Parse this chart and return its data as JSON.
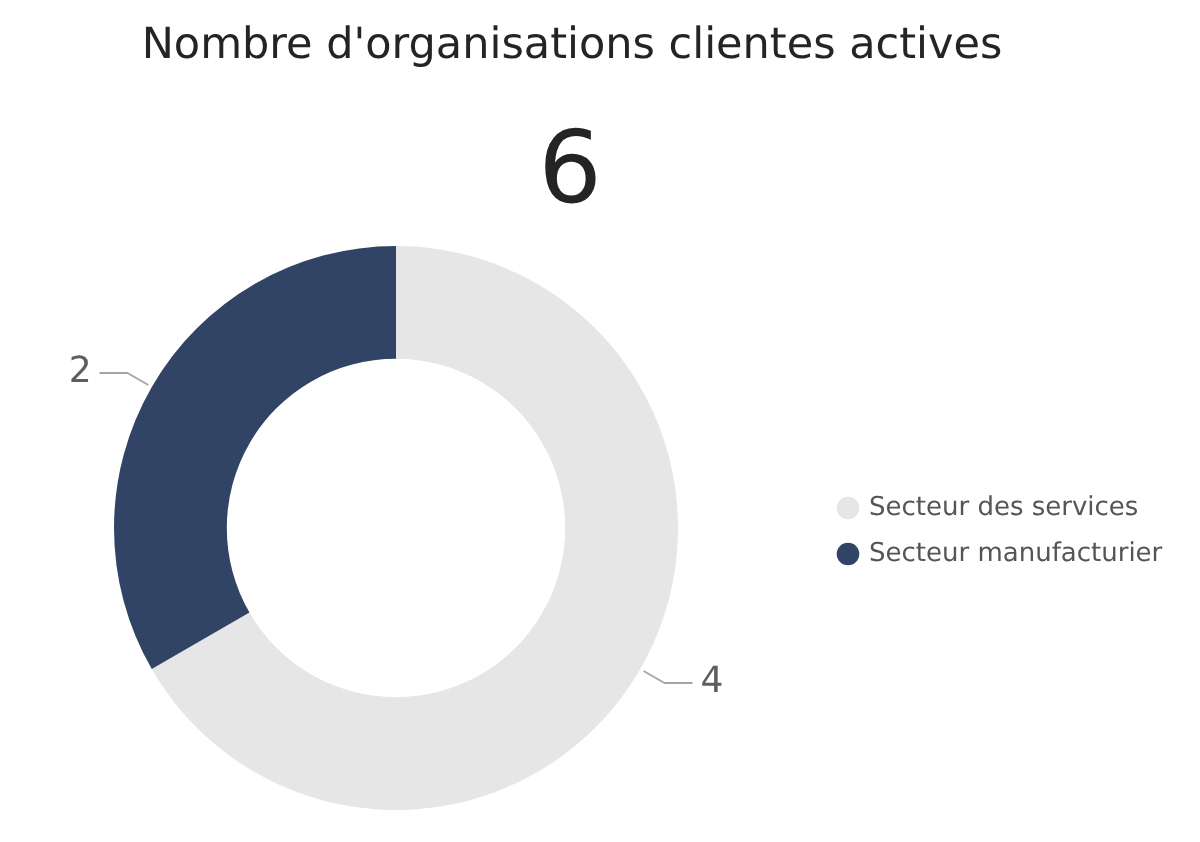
{
  "chart_data": {
    "type": "donut",
    "title": "Nombre d'organisations clientes actives",
    "subtitle": "6",
    "categories": [
      "Secteur des services",
      "Secteur manufacturier"
    ],
    "values": [
      4,
      2
    ],
    "colors": [
      "#e6e6e6",
      "#314466"
    ],
    "data_labels": true,
    "legend": "right"
  }
}
